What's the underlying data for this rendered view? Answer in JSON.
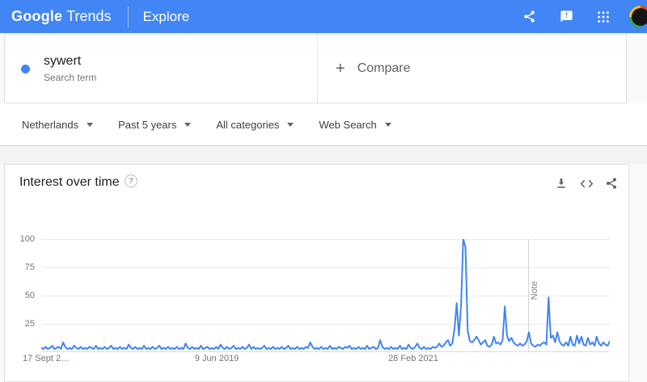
{
  "header": {
    "logo_google": "Google",
    "logo_trends": "Trends",
    "page_title": "Explore",
    "share_icon": "share-icon",
    "feedback_icon": "feedback-icon",
    "apps_icon": "apps-grid-icon",
    "avatar": "account-avatar"
  },
  "query": {
    "term": "sywert",
    "term_type": "Search term",
    "compare_plus": "+",
    "compare_label": "Compare"
  },
  "filters": [
    {
      "label": "Netherlands"
    },
    {
      "label": "Past 5 years"
    },
    {
      "label": "All categories"
    },
    {
      "label": "Web Search"
    }
  ],
  "widget": {
    "title": "Interest over time",
    "help_glyph": "?"
  },
  "colors": {
    "header_blue": "#4285f4",
    "line_blue": "#4285f4",
    "term_dot": "#4285f4",
    "muted_text": "#70757a"
  },
  "chart_data": {
    "type": "line",
    "title": "Interest over time",
    "series_name": "sywert",
    "region": "Netherlands",
    "time_range": "Past 5 years",
    "ylim": [
      0,
      100
    ],
    "grid": true,
    "y_ticks": [
      100,
      75,
      50,
      25
    ],
    "x_ticks": [
      {
        "label": "17 Sept 2…",
        "frac": 0.0,
        "align": "left"
      },
      {
        "label": "9 Jun 2019",
        "frac": 0.3414,
        "align": "center"
      },
      {
        "label": "28 Feb 2021",
        "frac": 0.687,
        "align": "center"
      }
    ],
    "note": {
      "label": "Note",
      "frac": 0.856
    },
    "line_color": "#4285f4",
    "values": [
      3,
      2,
      4,
      2,
      3,
      5,
      2,
      3,
      4,
      2,
      8,
      4,
      2,
      3,
      2,
      5,
      3,
      2,
      4,
      2,
      3,
      2,
      4,
      3,
      2,
      5,
      2,
      3,
      2,
      4,
      2,
      3,
      5,
      2,
      3,
      2,
      4,
      2,
      3,
      2,
      6,
      3,
      2,
      4,
      2,
      3,
      2,
      5,
      2,
      3,
      2,
      4,
      2,
      3,
      5,
      2,
      3,
      2,
      4,
      2,
      3,
      2,
      4,
      2,
      3,
      2,
      7,
      3,
      2,
      4,
      2,
      3,
      2,
      5,
      2,
      3,
      4,
      2,
      3,
      2,
      4,
      2,
      6,
      3,
      2,
      4,
      2,
      3,
      5,
      2,
      3,
      2,
      4,
      2,
      3,
      6,
      2,
      4,
      2,
      3,
      2,
      3,
      5,
      2,
      3,
      2,
      4,
      2,
      3,
      2,
      4,
      2,
      3,
      5,
      2,
      3,
      2,
      4,
      2,
      3,
      2,
      4,
      3,
      8,
      4,
      2,
      3,
      2,
      4,
      2,
      3,
      2,
      5,
      2,
      3,
      2,
      4,
      3,
      2,
      4,
      3,
      5,
      2,
      3,
      2,
      4,
      2,
      3,
      2,
      5,
      2,
      3,
      4,
      2,
      3,
      10,
      4,
      2,
      3,
      2,
      4,
      2,
      3,
      2,
      5,
      2,
      3,
      2,
      6,
      3,
      2,
      4,
      7,
      3,
      2,
      4,
      2,
      3,
      2,
      4,
      3,
      4,
      7,
      4,
      5,
      8,
      10,
      5,
      7,
      20,
      43,
      14,
      41,
      100,
      93,
      18,
      9,
      8,
      10,
      13,
      10,
      6,
      8,
      10,
      5,
      4,
      6,
      13,
      7,
      8,
      6,
      10,
      40,
      14,
      9,
      12,
      8,
      6,
      5,
      7,
      5,
      6,
      9,
      17,
      7,
      5,
      4,
      6,
      5,
      7,
      8,
      6,
      48,
      12,
      14,
      8,
      17,
      9,
      6,
      5,
      8,
      5,
      13,
      6,
      5,
      14,
      7,
      13,
      6,
      5,
      12,
      6,
      8,
      5,
      13,
      7,
      5,
      8,
      6,
      5,
      9
    ]
  }
}
